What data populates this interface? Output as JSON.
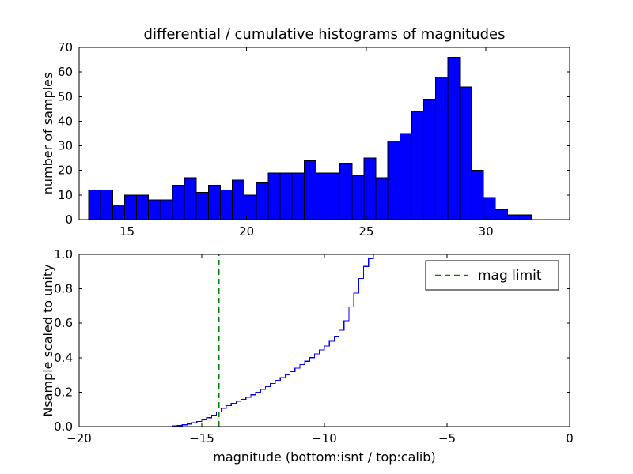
{
  "figure": {
    "background": "#ffffff",
    "frame_color": "#000000"
  },
  "chart_data": [
    {
      "type": "bar",
      "title": "differential / cumulative histograms of magnitudes",
      "xlabel": "",
      "ylabel": "number of samples",
      "xlim": [
        13,
        33.5
      ],
      "ylim": [
        0,
        70
      ],
      "xticks": [
        15,
        20,
        25,
        30
      ],
      "xtick_labels": [
        "15",
        "20",
        "25",
        "30"
      ],
      "yticks": [
        0,
        10,
        20,
        30,
        40,
        50,
        60,
        70
      ],
      "ytick_labels": [
        "0",
        "10",
        "20",
        "30",
        "40",
        "50",
        "60",
        "70"
      ],
      "bin_start": 13.4,
      "bin_width": 0.5,
      "values": [
        12,
        12,
        6,
        10,
        10,
        8,
        8,
        14,
        17,
        11,
        14,
        12,
        16,
        10,
        15,
        19,
        19,
        19,
        24,
        19,
        19,
        23,
        18,
        25,
        17,
        32,
        35,
        44,
        49,
        58,
        66,
        54,
        20,
        9,
        4,
        2,
        2
      ],
      "bar_color": "#0000ff",
      "bar_edge_color": "#000000",
      "grid": false
    },
    {
      "type": "line",
      "title": "",
      "xlabel": "magnitude (bottom:isnt / top:calib)",
      "ylabel": "Nsample scaled to unity",
      "xlim": [
        -20,
        0
      ],
      "ylim": [
        0.0,
        1.0
      ],
      "xticks": [
        -20,
        -15,
        -10,
        -5,
        0
      ],
      "xtick_labels": [
        "−20",
        "−15",
        "−10",
        "−5",
        "0"
      ],
      "yticks": [
        0.0,
        0.2,
        0.4,
        0.6,
        0.8,
        1.0
      ],
      "ytick_labels": [
        "0.0",
        "0.2",
        "0.4",
        "0.6",
        "0.8",
        "1.0"
      ],
      "step_start": -16.2,
      "step_width": 0.2,
      "cumulative": [
        0.003,
        0.006,
        0.01,
        0.015,
        0.022,
        0.03,
        0.04,
        0.052,
        0.067,
        0.085,
        0.105,
        0.122,
        0.135,
        0.147,
        0.158,
        0.17,
        0.185,
        0.2,
        0.215,
        0.232,
        0.25,
        0.268,
        0.285,
        0.302,
        0.32,
        0.34,
        0.36,
        0.38,
        0.4,
        0.422,
        0.445,
        0.468,
        0.495,
        0.525,
        0.56,
        0.615,
        0.695,
        0.775,
        0.86,
        0.93,
        0.975,
        1.0
      ],
      "line_color": "#0000ff",
      "mag_limit": {
        "x": -14.3,
        "color": "#008000",
        "style": "dashed"
      },
      "legend": {
        "label": "mag limit",
        "position": "upper right"
      },
      "grid": false
    }
  ]
}
